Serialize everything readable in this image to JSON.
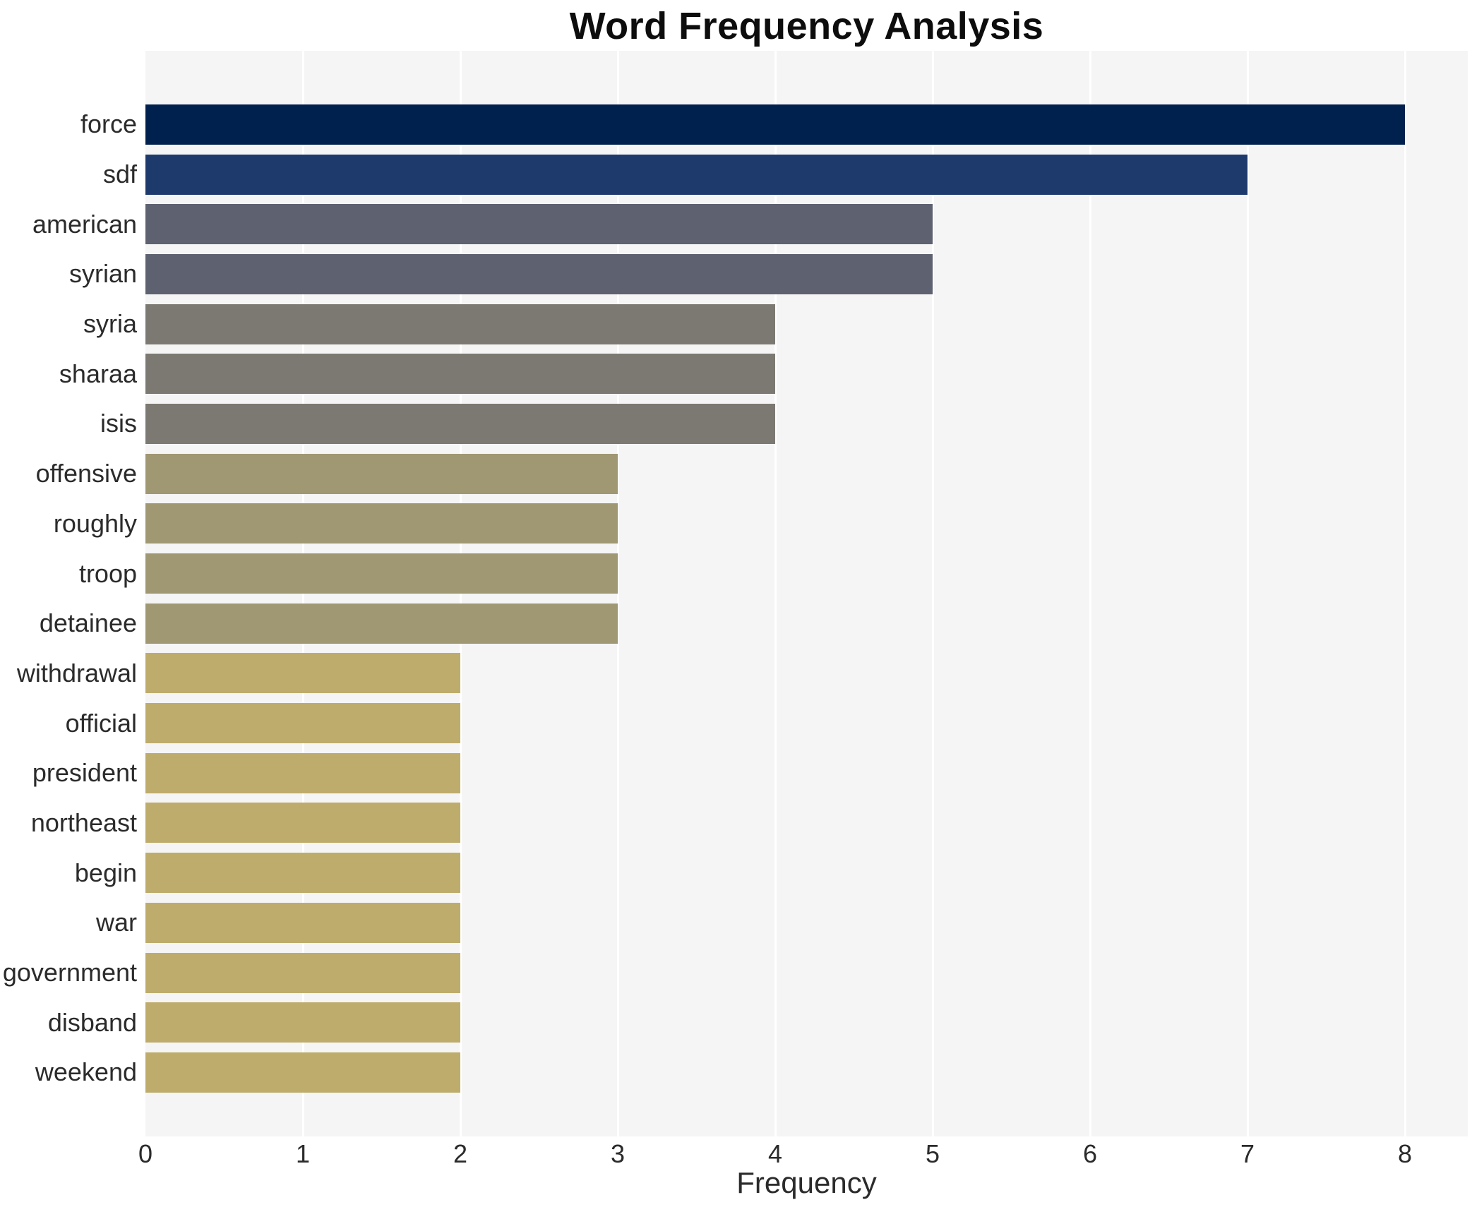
{
  "title": "Word Frequency Analysis",
  "chart_data": {
    "type": "bar",
    "orientation": "horizontal",
    "title": "Word Frequency Analysis",
    "xlabel": "Frequency",
    "ylabel": "",
    "xlim": [
      0,
      8.4
    ],
    "x_ticks": [
      0,
      1,
      2,
      3,
      4,
      5,
      6,
      7,
      8
    ],
    "grid": true,
    "legend": false,
    "categories": [
      "force",
      "sdf",
      "american",
      "syrian",
      "syria",
      "sharaa",
      "isis",
      "offensive",
      "roughly",
      "troop",
      "detainee",
      "withdrawal",
      "official",
      "president",
      "northeast",
      "begin",
      "war",
      "government",
      "disband",
      "weekend"
    ],
    "values": [
      8,
      7,
      5,
      5,
      4,
      4,
      4,
      3,
      3,
      3,
      3,
      2,
      2,
      2,
      2,
      2,
      2,
      2,
      2,
      2
    ],
    "bar_colors": [
      "#00204d",
      "#1e3a6d",
      "#5d6170",
      "#5d6170",
      "#7b7971",
      "#7b7971",
      "#7b7971",
      "#a09873",
      "#a09873",
      "#a09873",
      "#a09873",
      "#beac6c",
      "#beac6c",
      "#beac6c",
      "#beac6c",
      "#beac6c",
      "#beac6c",
      "#beac6c",
      "#beac6c",
      "#beac6c"
    ],
    "colors": {
      "page_bg": "#ffffff",
      "plot_bg": "#f5f5f6",
      "grid": "#ffffff",
      "tick_text": "#2b2b2b",
      "title_text": "#0d0d0d"
    }
  }
}
